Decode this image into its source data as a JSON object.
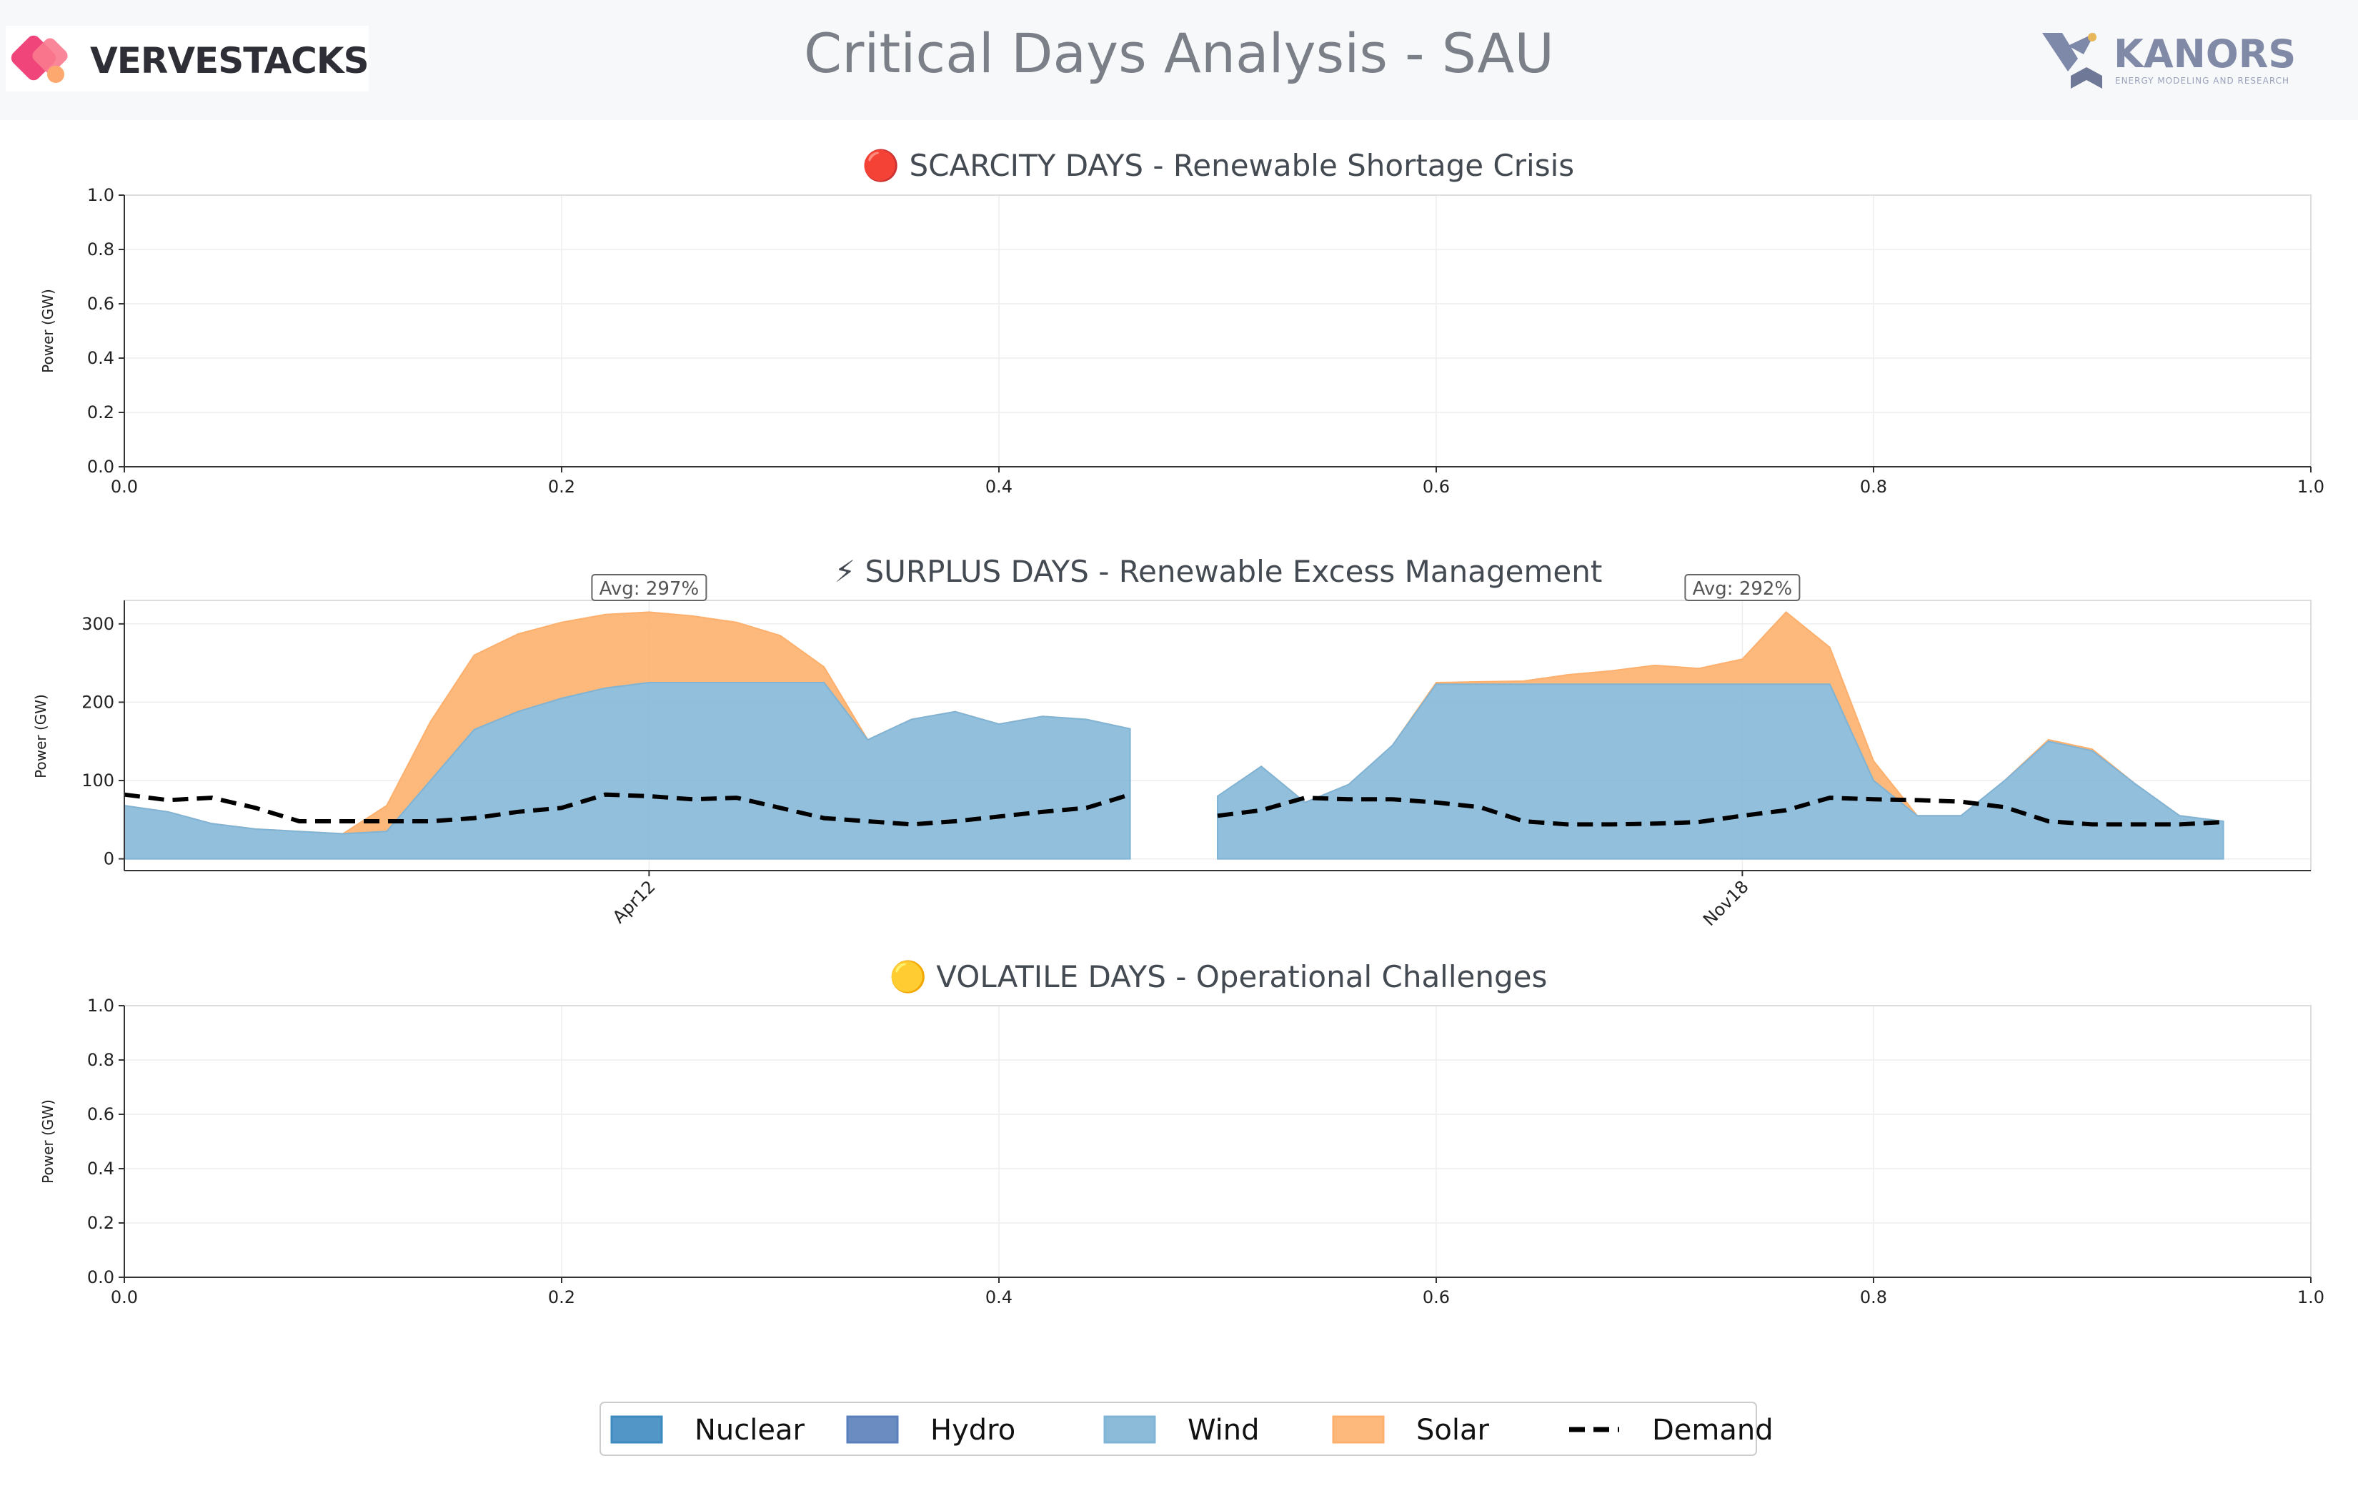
{
  "header": {
    "title": "Critical Days Analysis - SAU",
    "left_logo_text": "VERVESTACKS",
    "right_logo_text": "KANORS",
    "right_logo_tagline": "ENERGY MODELING AND RESEARCH"
  },
  "colors": {
    "nuclear": "#3e8bc0",
    "hydro": "#5a7fba",
    "wind": "#7fb4d6",
    "solar": "#fdb06d",
    "demand": "#000000"
  },
  "chart_data": [
    {
      "type": "area",
      "title": "🔴 SCARCITY DAYS - Renewable Shortage Crisis",
      "ylabel": "Power (GW)",
      "xlim": [
        0,
        1
      ],
      "ylim": [
        0,
        1
      ],
      "xticks": [
        "0.0",
        "0.2",
        "0.4",
        "0.6",
        "0.8",
        "1.0"
      ],
      "yticks": [
        "0.0",
        "0.2",
        "0.4",
        "0.6",
        "0.8",
        "1.0"
      ],
      "grid": true,
      "series": []
    },
    {
      "type": "area",
      "title": "⚡ SURPLUS DAYS - Renewable Excess Management",
      "ylabel": "Power (GW)",
      "xlim": [
        0,
        100
      ],
      "ylim": [
        -15,
        330
      ],
      "yticks": [
        0,
        100,
        200,
        300
      ],
      "grid": true,
      "day_labels": [
        {
          "label": "Apr12",
          "x": 24
        },
        {
          "label": "Nov18",
          "x": 74
        }
      ],
      "annotations": [
        {
          "text": "Avg: 297%",
          "x": 24,
          "y": 345
        },
        {
          "text": "Avg: 292%",
          "x": 74,
          "y": 345
        }
      ],
      "days": [
        {
          "x": [
            0,
            2,
            4,
            6,
            8,
            10,
            12,
            14,
            16,
            18,
            20,
            22,
            24,
            26,
            28,
            30,
            32,
            34,
            36,
            38,
            40,
            42,
            44,
            46
          ],
          "wind": [
            68,
            60,
            45,
            38,
            35,
            32,
            35,
            100,
            165,
            188,
            205,
            218,
            225,
            225,
            225,
            225,
            225,
            152,
            178,
            188,
            172,
            182,
            178,
            166
          ],
          "total": [
            68,
            60,
            45,
            38,
            35,
            32,
            68,
            175,
            260,
            287,
            302,
            312,
            315,
            310,
            302,
            285,
            245,
            152,
            178,
            188,
            172,
            182,
            178,
            166
          ],
          "demand": [
            82,
            75,
            78,
            65,
            48,
            48,
            48,
            48,
            52,
            60,
            65,
            82,
            80,
            76,
            78,
            65,
            52,
            48,
            44,
            48,
            54,
            60,
            65,
            82
          ]
        },
        {
          "x": [
            50,
            52,
            54,
            56,
            58,
            60,
            62,
            64,
            66,
            68,
            70,
            72,
            74,
            76,
            78,
            80,
            82,
            84,
            86,
            88,
            90,
            92,
            94,
            96
          ],
          "wind": [
            80,
            118,
            72,
            95,
            145,
            223,
            223,
            223,
            223,
            223,
            223,
            223,
            223,
            223,
            223,
            100,
            55,
            55,
            100,
            150,
            138,
            95,
            55,
            48
          ],
          "total": [
            80,
            118,
            72,
            95,
            145,
            225,
            226,
            227,
            235,
            240,
            247,
            243,
            255,
            315,
            270,
            125,
            55,
            55,
            100,
            152,
            140,
            95,
            55,
            48
          ],
          "demand": [
            55,
            62,
            78,
            76,
            76,
            72,
            66,
            48,
            44,
            44,
            45,
            47,
            55,
            62,
            78,
            76,
            75,
            73,
            66,
            48,
            44,
            44,
            44,
            47
          ]
        }
      ]
    },
    {
      "type": "area",
      "title": "🟡 VOLATILE DAYS - Operational Challenges",
      "ylabel": "Power (GW)",
      "xlim": [
        0,
        1
      ],
      "ylim": [
        0,
        1
      ],
      "xticks": [
        "0.0",
        "0.2",
        "0.4",
        "0.6",
        "0.8",
        "1.0"
      ],
      "yticks": [
        "0.0",
        "0.2",
        "0.4",
        "0.6",
        "0.8",
        "1.0"
      ],
      "grid": true,
      "series": []
    }
  ],
  "legend": {
    "placement": "bottom-center",
    "items": [
      {
        "key": "nuclear",
        "label": "Nuclear",
        "kind": "patch"
      },
      {
        "key": "hydro",
        "label": "Hydro",
        "kind": "patch"
      },
      {
        "key": "wind",
        "label": "Wind",
        "kind": "patch"
      },
      {
        "key": "solar",
        "label": "Solar",
        "kind": "patch"
      },
      {
        "key": "demand",
        "label": "Demand",
        "kind": "dash"
      }
    ]
  }
}
